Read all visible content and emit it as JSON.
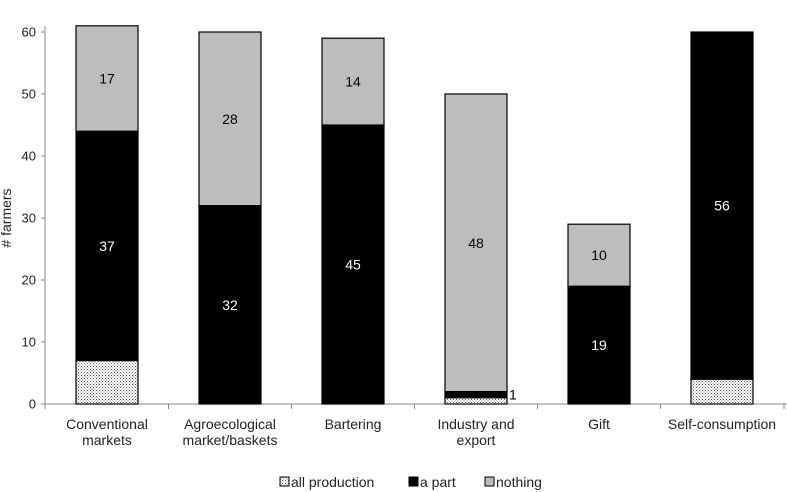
{
  "chart_data": {
    "type": "bar",
    "stacked": true,
    "ylabel": "# farmers",
    "xlabel": "",
    "ylim": [
      0,
      60
    ],
    "yticks": [
      0,
      10,
      20,
      30,
      40,
      50,
      60
    ],
    "categories": [
      [
        "Conventional",
        "markets"
      ],
      [
        "Agroecological",
        "market/baskets"
      ],
      [
        "Bartering"
      ],
      [
        "Industry and",
        "export"
      ],
      [
        "Gift"
      ],
      [
        "Self-consumption"
      ]
    ],
    "series": [
      {
        "name": "all production",
        "values": [
          7,
          0,
          0,
          1,
          0,
          4
        ],
        "color": "#ffffff",
        "pattern": "dotted",
        "labels": [
          "",
          "",
          "",
          "",
          "",
          ""
        ]
      },
      {
        "name": "a part",
        "values": [
          37,
          32,
          45,
          1,
          19,
          56
        ],
        "color": "#000000",
        "labels": [
          "37",
          "32",
          "45",
          "1",
          "19",
          "56"
        ]
      },
      {
        "name": "nothing",
        "values": [
          17,
          28,
          14,
          48,
          10,
          0
        ],
        "color": "#bdbdbd",
        "labels": [
          "17",
          "28",
          "14",
          "48",
          "10",
          ""
        ]
      }
    ],
    "legend_position": "bottom",
    "grid": false
  }
}
